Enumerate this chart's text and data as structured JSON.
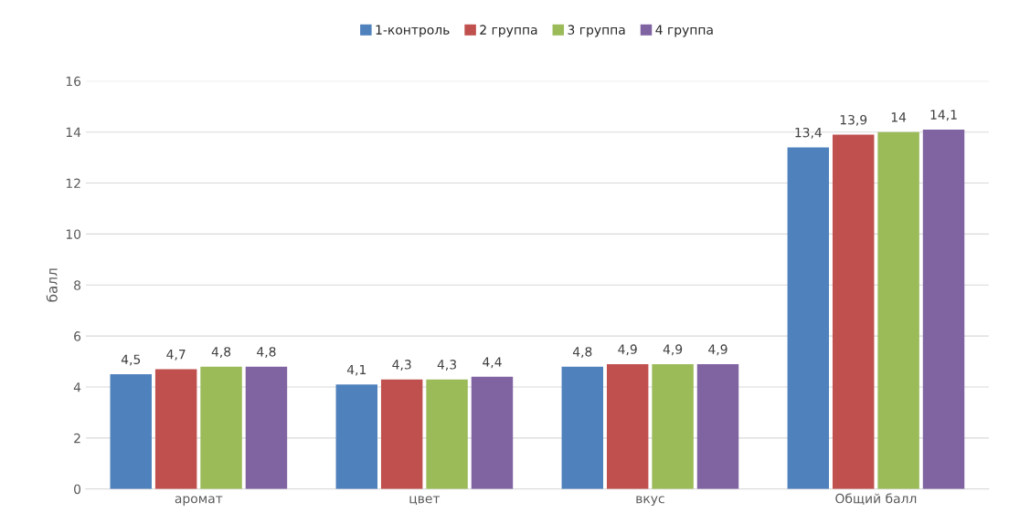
{
  "chart_data": {
    "type": "bar",
    "ylabel": "балл",
    "categories": [
      "аромат",
      "цвет",
      "вкус",
      "Общий балл"
    ],
    "series": [
      {
        "name": "1-контроль",
        "color": "#4f81bd",
        "values": [
          4.5,
          4.1,
          4.8,
          13.4
        ],
        "value_labels": [
          "4,5",
          "4,1",
          "4,8",
          "13,4"
        ]
      },
      {
        "name": "2 группа",
        "color": "#c0504d",
        "values": [
          4.7,
          4.3,
          4.9,
          13.9
        ],
        "value_labels": [
          "4,7",
          "4,3",
          "4,9",
          "13,9"
        ]
      },
      {
        "name": "3 группа",
        "color": "#9bbb59",
        "values": [
          4.8,
          4.3,
          4.9,
          14
        ],
        "value_labels": [
          "4,8",
          "4,3",
          "4,9",
          "14"
        ]
      },
      {
        "name": "4 группа",
        "color": "#8064a2",
        "values": [
          4.8,
          4.4,
          4.9,
          14.1
        ],
        "value_labels": [
          "4,8",
          "4,4",
          "4,9",
          "14,1"
        ]
      }
    ],
    "ylim": [
      0,
      16
    ],
    "yticks": [
      0,
      2,
      4,
      6,
      8,
      10,
      12,
      14,
      16
    ],
    "grid": "y",
    "legend": "top"
  }
}
